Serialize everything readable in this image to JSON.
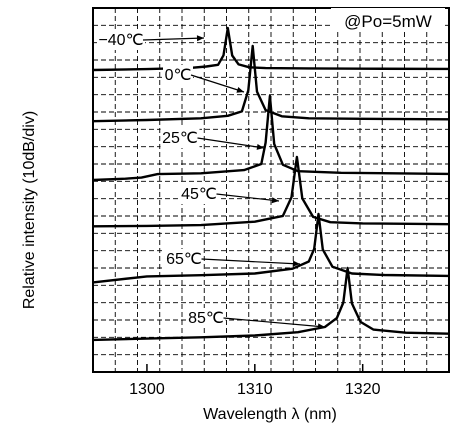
{
  "chart_data": {
    "type": "line",
    "title": "",
    "annotation": "@Po=5mW",
    "xlabel": "Wavelength  λ (nm)",
    "ylabel": "Relative intensity (10dB/div)",
    "xlim": [
      1295,
      1328
    ],
    "xticks": [
      "1300",
      "1310",
      "1320"
    ],
    "xtick_values": [
      1300,
      1310,
      1320
    ],
    "grid": true,
    "y_units": "dB (10 dB per division, relative; curves vertically offset by temperature)",
    "series": [
      {
        "name": "-40℃",
        "label": "−40℃",
        "peak_wavelength": 1307.5,
        "baseline_offset_div": 0.0,
        "x": [
          1295,
          1300,
          1304,
          1305.5,
          1306.6,
          1307.1,
          1307.5,
          1307.9,
          1308.5,
          1309.5,
          1311,
          1315,
          1320,
          1328
        ],
        "y": [
          -31.5,
          -30.8,
          -29.9,
          -28.9,
          -27.6,
          -20.5,
          0,
          -20.6,
          -27.3,
          -29.5,
          -30.1,
          -30.3,
          -30.5,
          -30.7
        ]
      },
      {
        "name": "0℃",
        "label": "0℃",
        "peak_wavelength": 1309.8,
        "baseline_offset_div": -1.0,
        "x": [
          1295,
          1300,
          1305,
          1307.5,
          1308.8,
          1309.4,
          1309.8,
          1310.2,
          1311,
          1312.5,
          1315,
          1320,
          1328
        ],
        "y": [
          -30.5,
          -30.0,
          -29.3,
          -28.3,
          -26.5,
          -18.0,
          0,
          -18.5,
          -26.0,
          -28.5,
          -29.3,
          -29.5,
          -29.7
        ]
      },
      {
        "name": "25℃",
        "label": "25℃",
        "peak_wavelength": 1311.4,
        "baseline_offset_div": -2.0,
        "x": [
          1295,
          1298,
          1299.5,
          1301,
          1305,
          1309,
          1310.6,
          1311.0,
          1311.4,
          1311.8,
          1312.6,
          1314,
          1318,
          1328
        ],
        "y": [
          -31.5,
          -31.0,
          -30.6,
          -29.3,
          -29.0,
          -27.8,
          -25.5,
          -17.5,
          0,
          -18.0,
          -25.8,
          -28.2,
          -28.8,
          -29.2
        ]
      },
      {
        "name": "45℃",
        "label": "45℃",
        "peak_wavelength": 1313.9,
        "baseline_offset_div": -3.0,
        "x": [
          1295,
          1300,
          1305,
          1310,
          1312.6,
          1313.4,
          1313.9,
          1314.4,
          1315.4,
          1317,
          1320,
          1328
        ],
        "y": [
          -28.5,
          -28.3,
          -28.0,
          -26.6,
          -24.2,
          -16.5,
          0,
          -17.0,
          -24.6,
          -26.8,
          -27.3,
          -27.6
        ]
      },
      {
        "name": "65℃",
        "label": "65℃",
        "peak_wavelength": 1315.9,
        "baseline_offset_div": -4.0,
        "x": [
          1295,
          1300,
          1305,
          1310,
          1313.5,
          1315.0,
          1315.5,
          1315.9,
          1316.3,
          1317.2,
          1319,
          1322,
          1328
        ],
        "y": [
          -28.5,
          -26.0,
          -25.5,
          -24.8,
          -22.8,
          -19.8,
          -14.5,
          0,
          -14.8,
          -22.0,
          -24.8,
          -25.4,
          -25.8
        ]
      },
      {
        "name": "85℃",
        "label": "85℃",
        "peak_wavelength": 1318.6,
        "baseline_offset_div": -5.0,
        "x": [
          1295,
          1300,
          1305,
          1310,
          1314,
          1316.5,
          1317.6,
          1318.2,
          1318.6,
          1319.0,
          1319.8,
          1321,
          1324,
          1328
        ],
        "y": [
          -28.0,
          -27.5,
          -27.0,
          -26.3,
          -25.0,
          -23.0,
          -19.5,
          -13.5,
          0,
          -13.8,
          -21.0,
          -24.0,
          -25.2,
          -25.6
        ]
      }
    ]
  }
}
